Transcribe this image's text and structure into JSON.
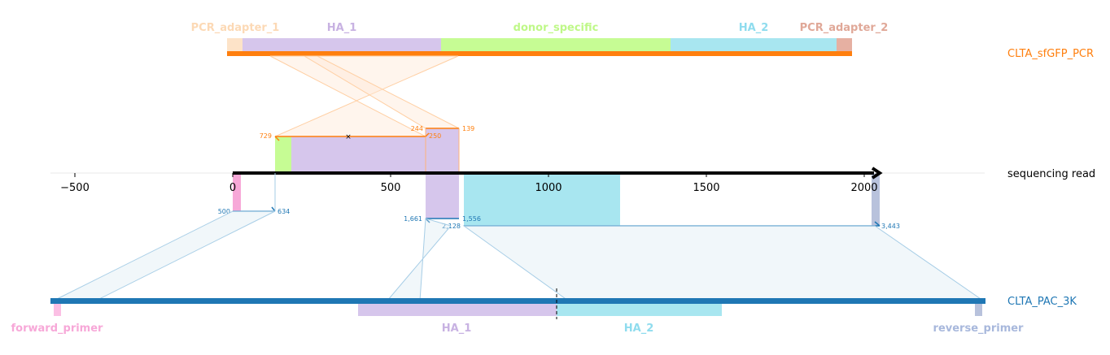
{
  "tracks": {
    "top": {
      "name": "CLTA_sfGFP_PCR",
      "color": "#ff7f0e"
    },
    "middle": {
      "name": "sequencing read",
      "color": "#000000"
    },
    "bottom": {
      "name": "CLTA_PAC_3K",
      "color": "#1f77b4"
    }
  },
  "top_features": [
    {
      "label": "PCR_adapter_1",
      "color": "#fcd9b5"
    },
    {
      "label": "HA_1",
      "color": "#c8b2e2"
    },
    {
      "label": "donor_specific",
      "color": "#bff888"
    },
    {
      "label": "HA_2",
      "color": "#8fdcee"
    },
    {
      "label": "PCR_adapter_2",
      "color": "#e0a898"
    }
  ],
  "bottom_features": [
    {
      "label": "forward_primer",
      "color": "#f7a8d8"
    },
    {
      "label": "HA_1",
      "color": "#c8b2e2"
    },
    {
      "label": "HA_2",
      "color": "#8fdcee"
    },
    {
      "label": "reverse_primer",
      "color": "#a8b8dc"
    }
  ],
  "axis": {
    "ticks": [
      {
        "value": -500,
        "label": "−500"
      },
      {
        "value": 0,
        "label": "0"
      },
      {
        "value": 500,
        "label": "500"
      },
      {
        "value": 1000,
        "label": "1000"
      },
      {
        "value": 1500,
        "label": "1500"
      },
      {
        "value": 2000,
        "label": "2000"
      }
    ]
  },
  "orange_labels": [
    "729",
    "244",
    "250",
    "139"
  ],
  "blue_labels": [
    "500",
    "634",
    "1,661",
    "1,556",
    "2,128",
    "3,443"
  ]
}
